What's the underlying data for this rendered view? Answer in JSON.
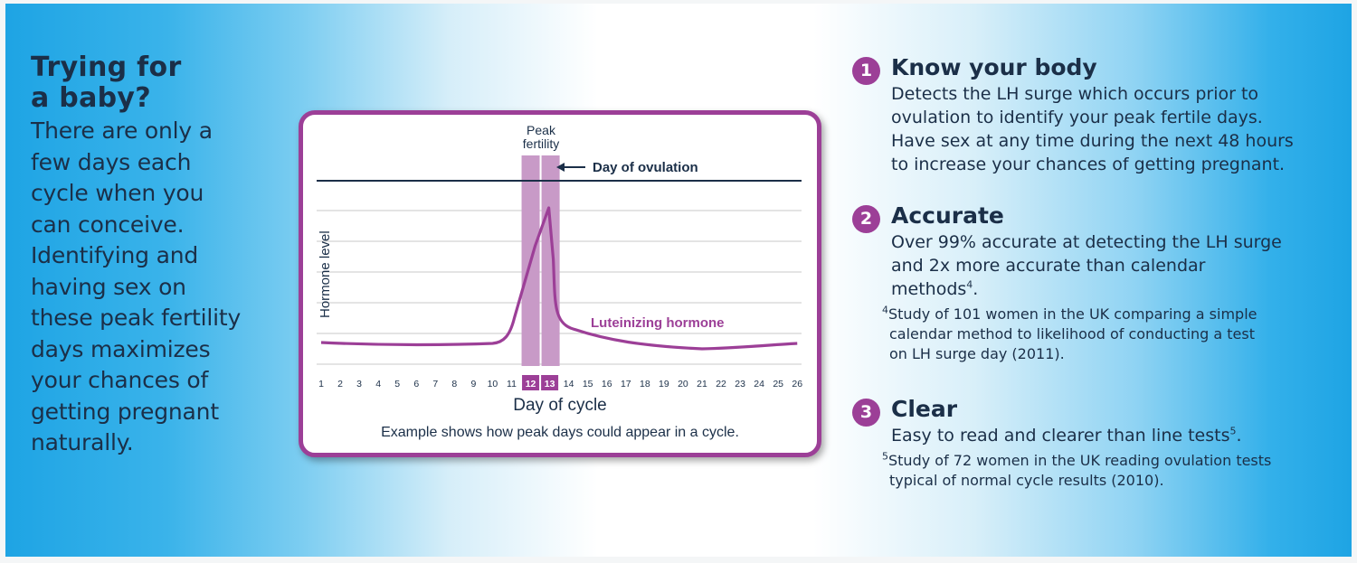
{
  "left": {
    "heading_line1": "Trying for",
    "heading_line2": "a baby?",
    "body_lines": [
      "There are only a",
      "few days each",
      "cycle when you",
      "can conceive.",
      "Identifying and",
      "having sex on",
      "these peak fertility",
      "days maximizes",
      "your chances of",
      "getting pregnant",
      "naturally."
    ]
  },
  "chart_data": {
    "type": "line",
    "ylabel": "Hormone level",
    "xlabel": "Day of cycle",
    "caption": "Example shows how peak days could appear in a cycle.",
    "series_label": "Luteinizing hormone",
    "peak_label_line1": "Peak",
    "peak_label_line2": "fertility",
    "ovulation_label": "Day of ovulation",
    "x": [
      1,
      2,
      3,
      4,
      5,
      6,
      7,
      8,
      9,
      10,
      11,
      12,
      13,
      14,
      15,
      16,
      17,
      18,
      19,
      20,
      21,
      22,
      23,
      24,
      25,
      26
    ],
    "highlight_days": [
      12,
      13
    ],
    "colors": {
      "accent": "#9c3f97",
      "band": "#c89ac7",
      "navy": "#1b2f48"
    }
  },
  "features": [
    {
      "number": "1",
      "title": "Know your body",
      "body_lines": [
        "Detects the LH surge which occurs prior to",
        "ovulation to identify your peak fertile days.",
        "Have sex at any time during the next 48 hours",
        "to increase your chances of getting pregnant."
      ]
    },
    {
      "number": "2",
      "title": "Accurate",
      "body_lines": [
        "Over 99% accurate at detecting the LH surge",
        "and 2x more accurate than calendar"
      ],
      "body_last": "methods",
      "body_sup": "4",
      "body_end": ".",
      "note_sup": "4",
      "note_lines": [
        "Study of 101 women in the UK comparing a simple",
        "calendar method to likelihood of conducting a test",
        "on LH surge day (2011)."
      ]
    },
    {
      "number": "3",
      "title": "Clear",
      "body_text": "Easy to read and clearer than line tests",
      "body_sup": "5",
      "body_end": ".",
      "note_sup": "5",
      "note_lines": [
        "Study of 72 women in the UK reading ovulation tests",
        "typical of normal cycle results (2010)."
      ]
    }
  ]
}
